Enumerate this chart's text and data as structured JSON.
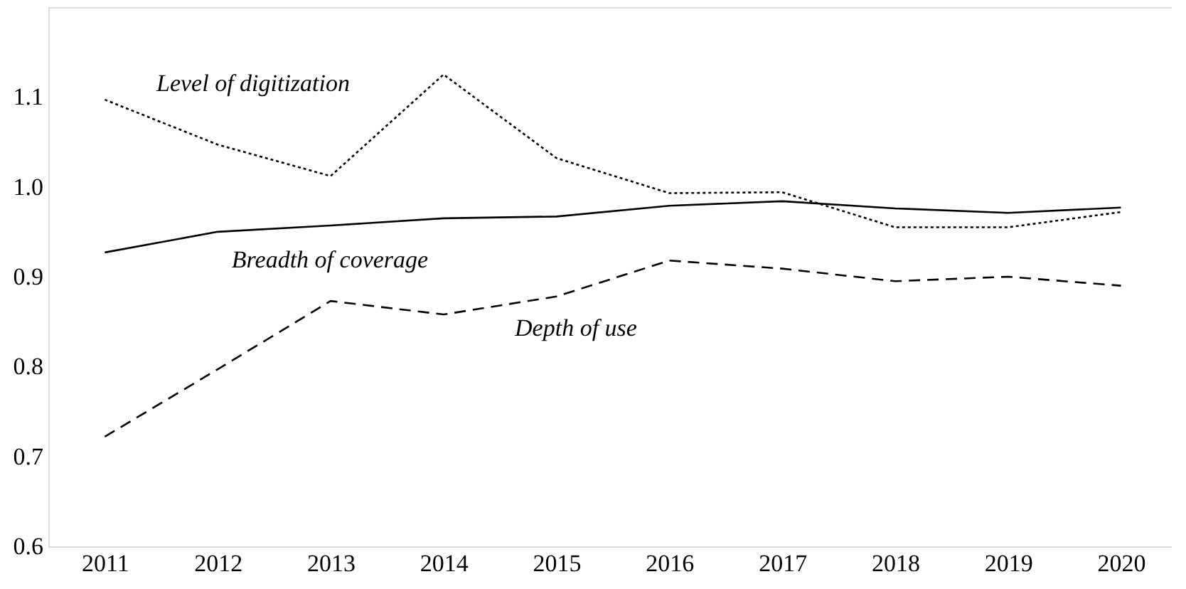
{
  "chart_data": {
    "type": "line",
    "x": [
      2011,
      2012,
      2013,
      2014,
      2015,
      2016,
      2017,
      2018,
      2019,
      2020
    ],
    "series": [
      {
        "color": "#000000",
        "line_style": "dotted",
        "values": [
          1.097,
          1.047,
          1.012,
          1.125,
          1.032,
          0.993,
          0.994,
          0.955,
          0.955,
          0.972
        ]
      },
      {
        "color": "#000000",
        "line_style": "solid",
        "values": [
          0.927,
          0.95,
          0.957,
          0.965,
          0.967,
          0.979,
          0.984,
          0.976,
          0.971,
          0.977
        ]
      },
      {
        "color": "#000000",
        "line_style": "dashed",
        "values": [
          0.722,
          0.797,
          0.873,
          0.858,
          0.878,
          0.918,
          0.909,
          0.895,
          0.9,
          0.89
        ]
      }
    ],
    "annotations": [
      "Level of digitization",
      "Breadth of coverage",
      "Depth of use"
    ],
    "xlim": [
      2010.5,
      2020.45
    ],
    "xticks": [
      2011,
      2012,
      2013,
      2014,
      2015,
      2016,
      2017,
      2018,
      2019,
      2020
    ],
    "ylim": [
      0.6,
      1.2
    ],
    "yticks": [
      {
        "value": 0.6,
        "label": "0.6"
      },
      {
        "value": 0.7,
        "label": "0.7"
      },
      {
        "value": 0.8,
        "label": "0.8"
      },
      {
        "value": 0.9,
        "label": "0.9"
      },
      {
        "value": 1.0,
        "label": "1.0"
      },
      {
        "value": 1.1,
        "label": "1.1"
      }
    ],
    "grid": false,
    "marker": "none"
  }
}
